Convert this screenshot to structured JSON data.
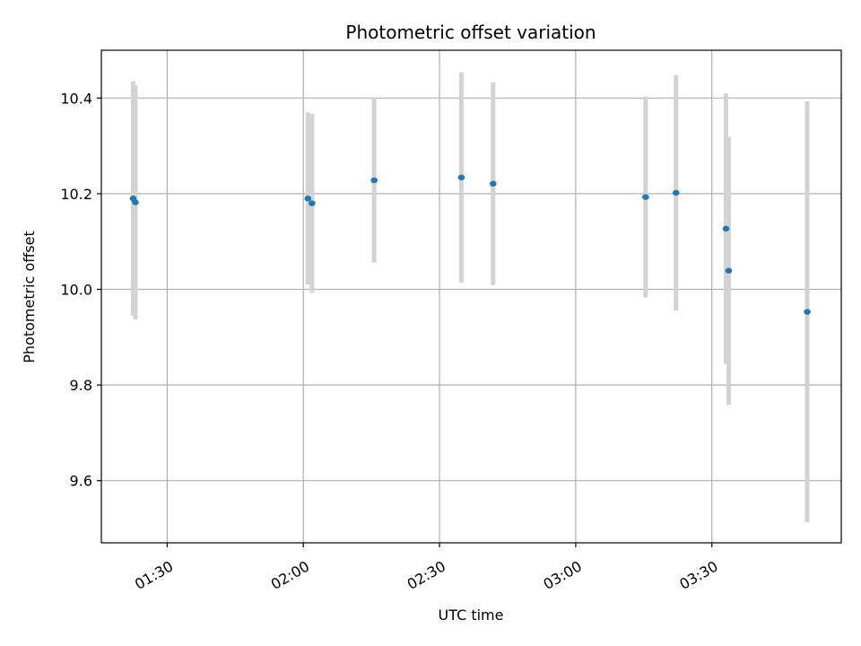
{
  "chart_data": {
    "type": "scatter",
    "title": "Photometric offset variation",
    "xlabel": "UTC time",
    "ylabel": "Photometric offset",
    "x_unit": "UTC time (HH:MM)",
    "xlim": [
      "01:15:30",
      "03:58:30"
    ],
    "ylim": [
      9.47,
      10.5
    ],
    "grid": true,
    "legend": "none",
    "x_ticks": [
      {
        "value": "01:30",
        "label": "01:30"
      },
      {
        "value": "02:00",
        "label": "02:00"
      },
      {
        "value": "02:30",
        "label": "02:30"
      },
      {
        "value": "03:00",
        "label": "03:00"
      },
      {
        "value": "03:30",
        "label": "03:30"
      }
    ],
    "y_ticks": [
      {
        "value": 9.6,
        "label": "9.6"
      },
      {
        "value": 9.8,
        "label": "9.8"
      },
      {
        "value": 10.0,
        "label": "10.0"
      },
      {
        "value": 10.2,
        "label": "10.2"
      },
      {
        "value": 10.4,
        "label": "10.4"
      }
    ],
    "series": [
      {
        "points": [
          {
            "x": "01:22:30",
            "y": 10.19,
            "err": 0.245
          },
          {
            "x": "01:23:00",
            "y": 10.182,
            "err": 0.245
          },
          {
            "x": "02:01:00",
            "y": 10.19,
            "err": 0.18
          },
          {
            "x": "02:01:54",
            "y": 10.18,
            "err": 0.187
          },
          {
            "x": "02:15:36",
            "y": 10.228,
            "err": 0.172
          },
          {
            "x": "02:34:48",
            "y": 10.234,
            "err": 0.22
          },
          {
            "x": "02:41:48",
            "y": 10.221,
            "err": 0.212
          },
          {
            "x": "03:15:24",
            "y": 10.193,
            "err": 0.21
          },
          {
            "x": "03:22:06",
            "y": 10.202,
            "err": 0.246
          },
          {
            "x": "03:33:06",
            "y": 10.127,
            "err": 0.283
          },
          {
            "x": "03:33:42",
            "y": 10.039,
            "err": 0.28
          },
          {
            "x": "03:51:00",
            "y": 9.953,
            "err": 0.44
          }
        ]
      }
    ],
    "colors": {
      "point": "#1f77b4",
      "errorbar": "#d3d3d3",
      "grid": "#b0b0b0",
      "axes": "#000000"
    }
  }
}
